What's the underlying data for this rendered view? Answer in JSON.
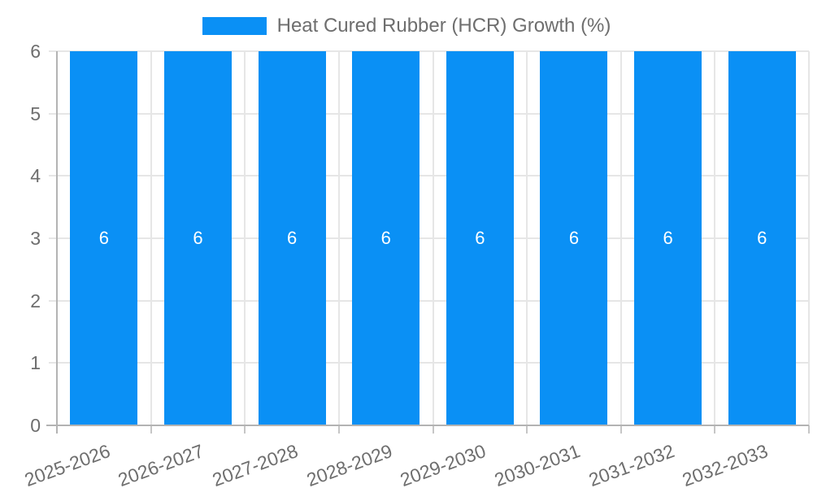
{
  "chart_data": {
    "type": "bar",
    "title": "",
    "legend_label": "Heat Cured Rubber (HCR) Growth (%)",
    "legend_position": "top",
    "categories": [
      "2025-2026",
      "2026-2027",
      "2027-2028",
      "2028-2029",
      "2029-2030",
      "2030-2031",
      "2031-2032",
      "2032-2033"
    ],
    "series": [
      {
        "name": "Heat Cured Rubber (HCR) Growth (%)",
        "values": [
          6,
          6,
          6,
          6,
          6,
          6,
          6,
          6
        ],
        "bar_labels": [
          "6",
          "6",
          "6",
          "6",
          "6",
          "6",
          "6",
          "6"
        ]
      }
    ],
    "xlabel": "",
    "ylabel": "",
    "ylim": [
      0,
      6
    ],
    "yticks": [
      0,
      1,
      2,
      3,
      4,
      5,
      6
    ],
    "grid": true,
    "colors": {
      "bar": "#0a90f5",
      "grid_light": "#e6e6e6",
      "grid_dark": "#b3b3b3",
      "tick": "#c6c6c6",
      "text": "#6e6e6e",
      "bar_label": "#ffffff",
      "background": "#ffffff"
    }
  }
}
